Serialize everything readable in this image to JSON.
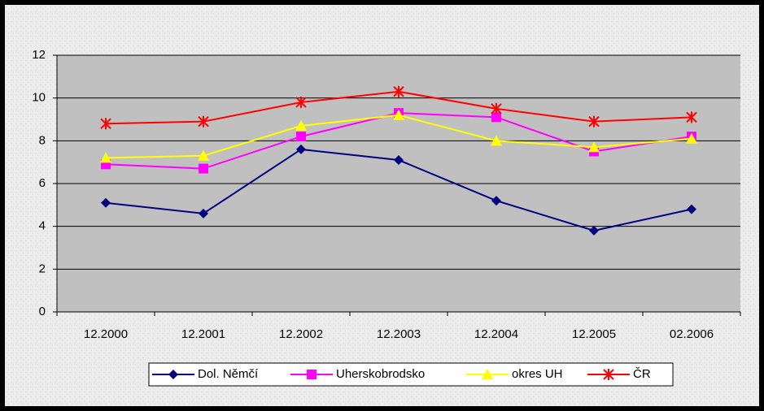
{
  "chart_data": {
    "type": "line",
    "categories": [
      "12.2000",
      "12.2001",
      "12.2002",
      "12.2003",
      "12.2004",
      "12.2005",
      "02.2006"
    ],
    "series": [
      {
        "name": "Dol. Němčí",
        "color": "#000080",
        "marker": "diamond",
        "values": [
          5.1,
          4.6,
          7.6,
          7.1,
          5.2,
          3.8,
          4.8
        ]
      },
      {
        "name": "Uherskobrodsko",
        "color": "#ff00ff",
        "marker": "square",
        "values": [
          6.9,
          6.7,
          8.2,
          9.3,
          9.1,
          7.5,
          8.2
        ]
      },
      {
        "name": "okres UH",
        "color": "#ffff00",
        "marker": "triangle",
        "values": [
          7.2,
          7.3,
          8.7,
          9.2,
          8.0,
          7.7,
          8.1
        ]
      },
      {
        "name": "ČR",
        "color": "#ff0000",
        "marker": "star",
        "values": [
          8.8,
          8.9,
          9.8,
          10.3,
          9.5,
          8.9,
          9.1
        ]
      }
    ],
    "ylim": [
      0,
      12
    ],
    "yticks": [
      0,
      2,
      4,
      6,
      8,
      10,
      12
    ],
    "grid": true,
    "legend": "bottom"
  }
}
